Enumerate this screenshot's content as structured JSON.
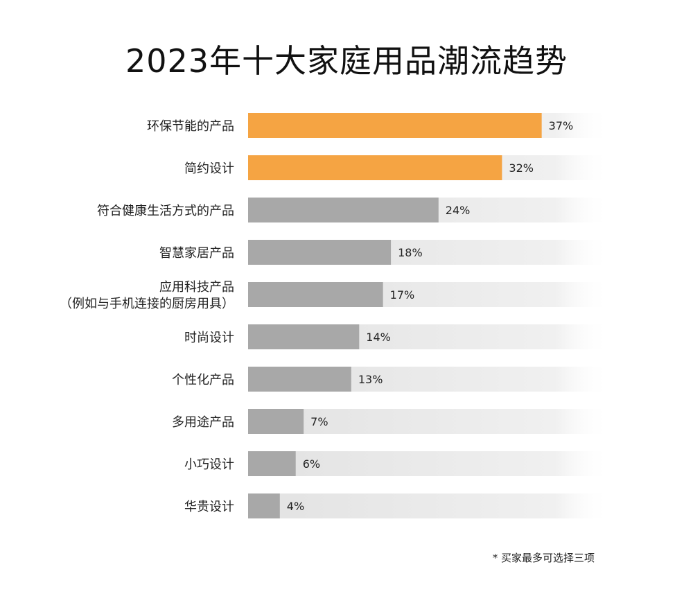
{
  "title": "2023年十大家庭用品潮流趋势",
  "footnote": "* 买家最多可选择三项",
  "colors": {
    "highlight": "#f5a443",
    "normal": "#a8a8a8",
    "track": "#ececec",
    "label": "#222222"
  },
  "chart_data": {
    "type": "bar",
    "orientation": "horizontal",
    "title": "2023年十大家庭用品潮流趋势",
    "categories": [
      [
        "环保节能的产品"
      ],
      [
        "简约设计"
      ],
      [
        "符合健康生活方式的产品"
      ],
      [
        "智慧家居产品"
      ],
      [
        "应用科技产品",
        "（例如与手机连接的厨房用具）"
      ],
      [
        "时尚设计"
      ],
      [
        "个性化产品"
      ],
      [
        "多用途产品"
      ],
      [
        "小巧设计"
      ],
      [
        "华贵设计"
      ]
    ],
    "values": [
      37,
      32,
      24,
      18,
      17,
      14,
      13,
      7,
      6,
      4
    ],
    "value_labels": [
      "37%",
      "32%",
      "24%",
      "18%",
      "17%",
      "14%",
      "13%",
      "7%",
      "6%",
      "4%"
    ],
    "highlighted": [
      true,
      true,
      false,
      false,
      false,
      false,
      false,
      false,
      false,
      false
    ],
    "unit": "%",
    "grid": false,
    "legend": "none"
  }
}
